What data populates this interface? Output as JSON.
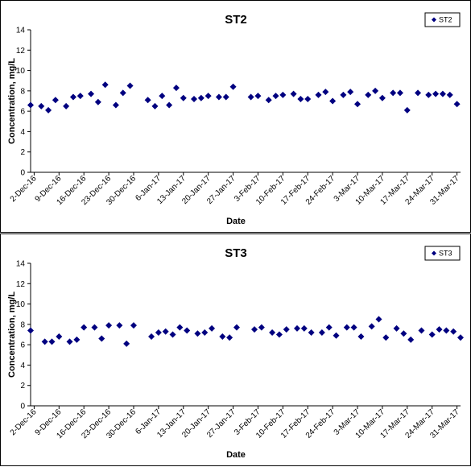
{
  "colors": {
    "marker": "#000080",
    "axis": "#000000",
    "background": "#ffffff"
  },
  "chart_data": [
    {
      "type": "scatter",
      "title": "ST2",
      "xlabel": "Date",
      "ylabel": "Concentration, mg/L",
      "ylim": [
        0,
        14
      ],
      "xlim": [
        "2016-12-01",
        "2017-04-01"
      ],
      "yticks": [
        "0",
        "2",
        "4",
        "6",
        "8",
        "10",
        "12",
        "14"
      ],
      "xtick_labels": [
        "2-Dec-16",
        "9-Dec-16",
        "16-Dec-16",
        "23-Dec-16",
        "30-Dec-16",
        "6-Jan-17",
        "13-Jan-17",
        "20-Jan-17",
        "27-Jan-17",
        "3-Feb-17",
        "10-Feb-17",
        "17-Feb-17",
        "24-Feb-17",
        "3-Mar-17",
        "10-Mar-17",
        "17-Mar-17",
        "24-Mar-17",
        "31-Mar-17"
      ],
      "grid": false,
      "legend_position": "top-right",
      "marker": "diamond",
      "series": [
        {
          "name": "ST2",
          "x": [
            "2016-12-01",
            "2016-12-04",
            "2016-12-06",
            "2016-12-08",
            "2016-12-11",
            "2016-12-13",
            "2016-12-15",
            "2016-12-18",
            "2016-12-20",
            "2016-12-22",
            "2016-12-25",
            "2016-12-27",
            "2016-12-29",
            "2017-01-03",
            "2017-01-05",
            "2017-01-07",
            "2017-01-09",
            "2017-01-11",
            "2017-01-13",
            "2017-01-16",
            "2017-01-18",
            "2017-01-20",
            "2017-01-23",
            "2017-01-25",
            "2017-01-27",
            "2017-02-01",
            "2017-02-03",
            "2017-02-06",
            "2017-02-08",
            "2017-02-10",
            "2017-02-13",
            "2017-02-15",
            "2017-02-17",
            "2017-02-20",
            "2017-02-22",
            "2017-02-24",
            "2017-02-27",
            "2017-03-01",
            "2017-03-03",
            "2017-03-06",
            "2017-03-08",
            "2017-03-10",
            "2017-03-13",
            "2017-03-15",
            "2017-03-17",
            "2017-03-20",
            "2017-03-23",
            "2017-03-25",
            "2017-03-27",
            "2017-03-29",
            "2017-03-31"
          ],
          "y": [
            6.6,
            6.5,
            6.1,
            7.1,
            6.5,
            7.4,
            7.5,
            7.7,
            6.9,
            8.6,
            6.6,
            7.8,
            8.5,
            7.1,
            6.5,
            7.5,
            6.6,
            8.3,
            7.3,
            7.2,
            7.3,
            7.5,
            7.4,
            7.4,
            8.4,
            7.4,
            7.5,
            7.1,
            7.5,
            7.6,
            7.7,
            7.2,
            7.2,
            7.6,
            7.9,
            7.0,
            7.6,
            7.9,
            6.7,
            7.6,
            8.0,
            7.3,
            7.8,
            7.8,
            6.1,
            7.8,
            7.6,
            7.7,
            7.7,
            7.6,
            6.7
          ]
        }
      ]
    },
    {
      "type": "scatter",
      "title": "ST3",
      "xlabel": "Date",
      "ylabel": "Concentration, mg/L",
      "ylim": [
        0,
        14
      ],
      "xlim": [
        "2016-12-01",
        "2017-04-01"
      ],
      "yticks": [
        "0",
        "2",
        "4",
        "6",
        "8",
        "10",
        "12",
        "14"
      ],
      "xtick_labels": [
        "2-Dec-16",
        "9-Dec-16",
        "16-Dec-16",
        "23-Dec-16",
        "30-Dec-16",
        "6-Jan-17",
        "13-Jan-17",
        "20-Jan-17",
        "27-Jan-17",
        "3-Feb-17",
        "10-Feb-17",
        "17-Feb-17",
        "24-Feb-17",
        "3-Mar-17",
        "10-Mar-17",
        "17-Mar-17",
        "24-Mar-17",
        "31-Mar-17"
      ],
      "grid": false,
      "legend_position": "top-right",
      "marker": "diamond",
      "series": [
        {
          "name": "ST3",
          "x": [
            "2016-12-01",
            "2016-12-05",
            "2016-12-07",
            "2016-12-09",
            "2016-12-12",
            "2016-12-14",
            "2016-12-16",
            "2016-12-19",
            "2016-12-21",
            "2016-12-23",
            "2016-12-26",
            "2016-12-28",
            "2016-12-30",
            "2017-01-04",
            "2017-01-06",
            "2017-01-08",
            "2017-01-10",
            "2017-01-12",
            "2017-01-14",
            "2017-01-17",
            "2017-01-19",
            "2017-01-21",
            "2017-01-24",
            "2017-01-26",
            "2017-01-28",
            "2017-02-02",
            "2017-02-04",
            "2017-02-07",
            "2017-02-09",
            "2017-02-11",
            "2017-02-14",
            "2017-02-16",
            "2017-02-18",
            "2017-02-21",
            "2017-02-23",
            "2017-02-25",
            "2017-02-28",
            "2017-03-02",
            "2017-03-04",
            "2017-03-07",
            "2017-03-09",
            "2017-03-11",
            "2017-03-14",
            "2017-03-16",
            "2017-03-18",
            "2017-03-21",
            "2017-03-24",
            "2017-03-26",
            "2017-03-28",
            "2017-03-30",
            "2017-04-01"
          ],
          "y": [
            7.4,
            6.3,
            6.3,
            6.8,
            6.3,
            6.5,
            7.7,
            7.7,
            6.6,
            7.9,
            7.9,
            6.1,
            7.9,
            6.8,
            7.2,
            7.3,
            7.0,
            7.7,
            7.4,
            7.1,
            7.2,
            7.6,
            6.8,
            6.7,
            7.7,
            7.5,
            7.7,
            7.2,
            7.0,
            7.5,
            7.6,
            7.6,
            7.2,
            7.2,
            7.7,
            6.9,
            7.7,
            7.7,
            6.8,
            7.8,
            8.5,
            6.7,
            7.6,
            7.1,
            6.5,
            7.4,
            7.0,
            7.5,
            7.4,
            7.3,
            6.7
          ]
        }
      ]
    }
  ]
}
